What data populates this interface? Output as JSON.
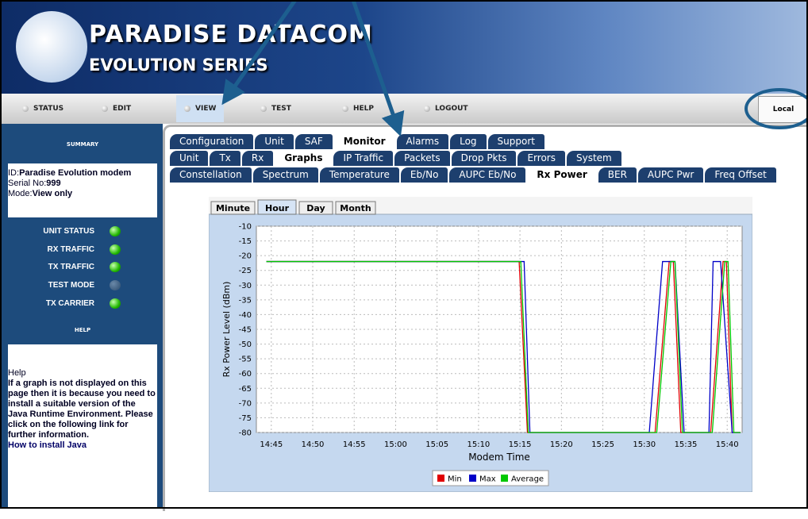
{
  "header": {
    "brand": "PARADISE DATACOM",
    "series": "EVOLUTION SERIES"
  },
  "nav": {
    "items": [
      "STATUS",
      "EDIT",
      "VIEW",
      "TEST",
      "HELP",
      "LOGOUT"
    ],
    "active": 2,
    "mode_button": "Local"
  },
  "sidebar": {
    "summary_title": "SUMMARY",
    "id_label": "ID:",
    "id_value": "Paradise Evolution modem",
    "serial_label": "Serial No:",
    "serial_value": "999",
    "mode_label": "Mode:",
    "mode_value": "View only",
    "indicators": [
      {
        "label": "UNIT STATUS",
        "state": "on"
      },
      {
        "label": "RX TRAFFIC",
        "state": "on"
      },
      {
        "label": "TX TRAFFIC",
        "state": "on"
      },
      {
        "label": "TEST MODE",
        "state": "off"
      },
      {
        "label": "TX CARRIER",
        "state": "on"
      }
    ],
    "help_title": "HELP",
    "help_heading": "Help",
    "help_text": "If a graph is not displayed on this page then it is because you need to install a suitable version of the Java Runtime Environment. Please click on the following link for further information.",
    "help_link": "How to install Java"
  },
  "tabs": {
    "main": [
      "Configuration",
      "Unit",
      "SAF",
      "Monitor",
      "Alarms",
      "Log",
      "Support"
    ],
    "main_active": 3,
    "sub": [
      "Unit",
      "Tx",
      "Rx",
      "Graphs",
      "IP Traffic",
      "Packets",
      "Drop Pkts",
      "Errors",
      "System"
    ],
    "sub_active": 3,
    "graphs": [
      "Constellation",
      "Spectrum",
      "Temperature",
      "Eb/No",
      "AUPC Eb/No",
      "Rx Power",
      "BER",
      "AUPC Pwr",
      "Freq Offset"
    ],
    "graphs_active": 5
  },
  "range_buttons": {
    "items": [
      "Minute",
      "Hour",
      "Day",
      "Month"
    ],
    "active": 1
  },
  "chart_data": {
    "type": "line",
    "xlabel": "Modem Time",
    "ylabel": "Rx Power Level (dBm)",
    "xlim": [
      883.2,
      941.8
    ],
    "ylim": [
      -80,
      -10
    ],
    "xticks": [
      {
        "value": 885,
        "label": "14:45"
      },
      {
        "value": 890,
        "label": "14:50"
      },
      {
        "value": 895,
        "label": "14:55"
      },
      {
        "value": 900,
        "label": "15:00"
      },
      {
        "value": 905,
        "label": "15:05"
      },
      {
        "value": 910,
        "label": "15:10"
      },
      {
        "value": 915,
        "label": "15:15"
      },
      {
        "value": 920,
        "label": "15:20"
      },
      {
        "value": 925,
        "label": "15:25"
      },
      {
        "value": 930,
        "label": "15:30"
      },
      {
        "value": 935,
        "label": "15:35"
      },
      {
        "value": 940,
        "label": "15:40"
      }
    ],
    "yticks": [
      -10,
      -15,
      -20,
      -25,
      -30,
      -35,
      -40,
      -45,
      -50,
      -55,
      -60,
      -65,
      -70,
      -75,
      -80
    ],
    "grid": true,
    "series": [
      {
        "name": "Min",
        "color": "#e00000",
        "x": [
          884.4,
          914.9,
          915.9,
          931.3,
          933.0,
          933.5,
          934.4,
          938.0,
          939.5,
          939.9,
          940.6,
          941.6
        ],
        "values": [
          -22,
          -22,
          -80,
          -80,
          -22,
          -22,
          -80,
          -80,
          -22,
          -22,
          -80,
          -80
        ]
      },
      {
        "name": "Max",
        "color": "#0000c8",
        "x": [
          884.4,
          915.5,
          916.2,
          930.6,
          932.2,
          933.7,
          934.8,
          937.8,
          938.3,
          939.2,
          940.6,
          941.6
        ],
        "values": [
          -22,
          -22,
          -80,
          -80,
          -22,
          -22,
          -80,
          -80,
          -22,
          -22,
          -80,
          -80
        ]
      },
      {
        "name": "Average",
        "color": "#00c800",
        "x": [
          884.4,
          915.1,
          916.0,
          931.5,
          933.2,
          933.7,
          934.6,
          938.2,
          939.7,
          940.1,
          940.8,
          941.6
        ],
        "values": [
          -22,
          -22,
          -80,
          -80,
          -22,
          -22,
          -80,
          -80,
          -22,
          -22,
          -80,
          -80
        ]
      }
    ]
  }
}
